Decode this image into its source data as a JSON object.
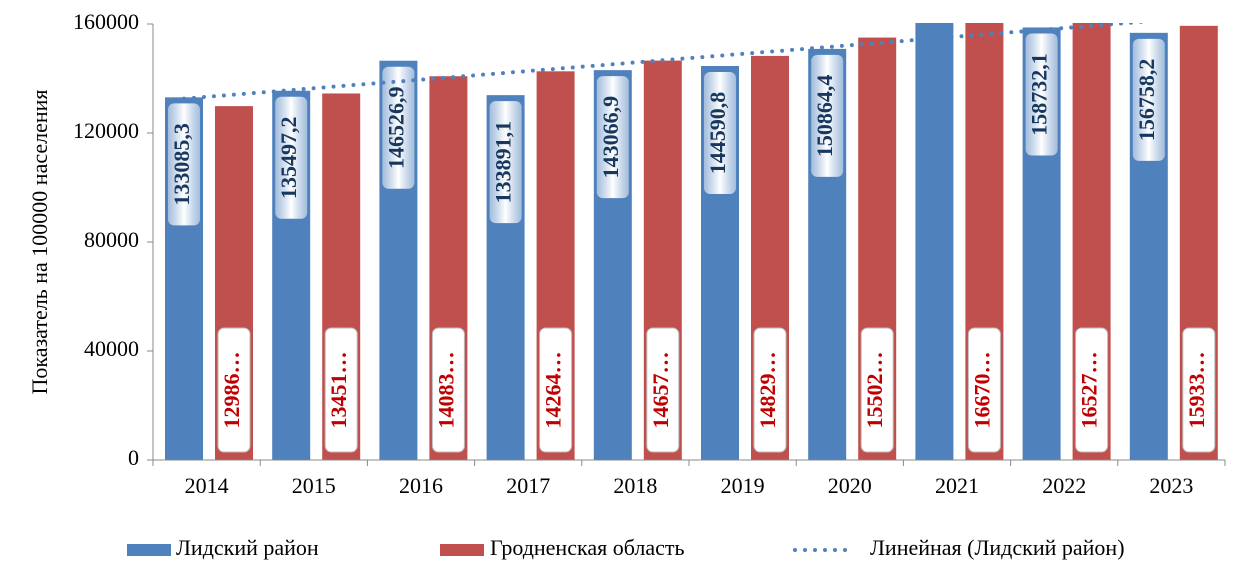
{
  "chart_data": {
    "type": "bar",
    "categories": [
      "2014",
      "2015",
      "2016",
      "2017",
      "2018",
      "2019",
      "2020",
      "2021",
      "2022",
      "2023"
    ],
    "series": [
      {
        "name": "Лидский район",
        "color": "#4f81bd",
        "values": [
          133085.3,
          135497.2,
          146526.9,
          133891.1,
          143066.9,
          144590.8,
          150864.4,
          165000,
          158732.1,
          156758.2
        ],
        "value_labels": [
          "133085,3",
          "135497,2",
          "146526,9",
          "133891,1",
          "143066,9",
          "144590,8",
          "150864,4",
          null,
          "158732,1",
          "156758,2"
        ]
      },
      {
        "name": "Гродненская область",
        "color": "#c0504d",
        "values": [
          129860,
          134510,
          140830,
          142640,
          146570,
          148290,
          155020,
          166700,
          165270,
          159330
        ],
        "value_labels": [
          "12986…",
          "13451…",
          "14083…",
          "14264…",
          "14657…",
          "14829…",
          "15502…",
          "16670…",
          "16527…",
          "15933…"
        ]
      }
    ],
    "trendline": {
      "name": "Линейная (Лидский район)",
      "series": 0
    },
    "y_label": "Показатель на 100000 населения",
    "ylim": [
      0,
      160000
    ],
    "yticks": [
      0,
      40000,
      80000,
      120000,
      160000
    ]
  }
}
